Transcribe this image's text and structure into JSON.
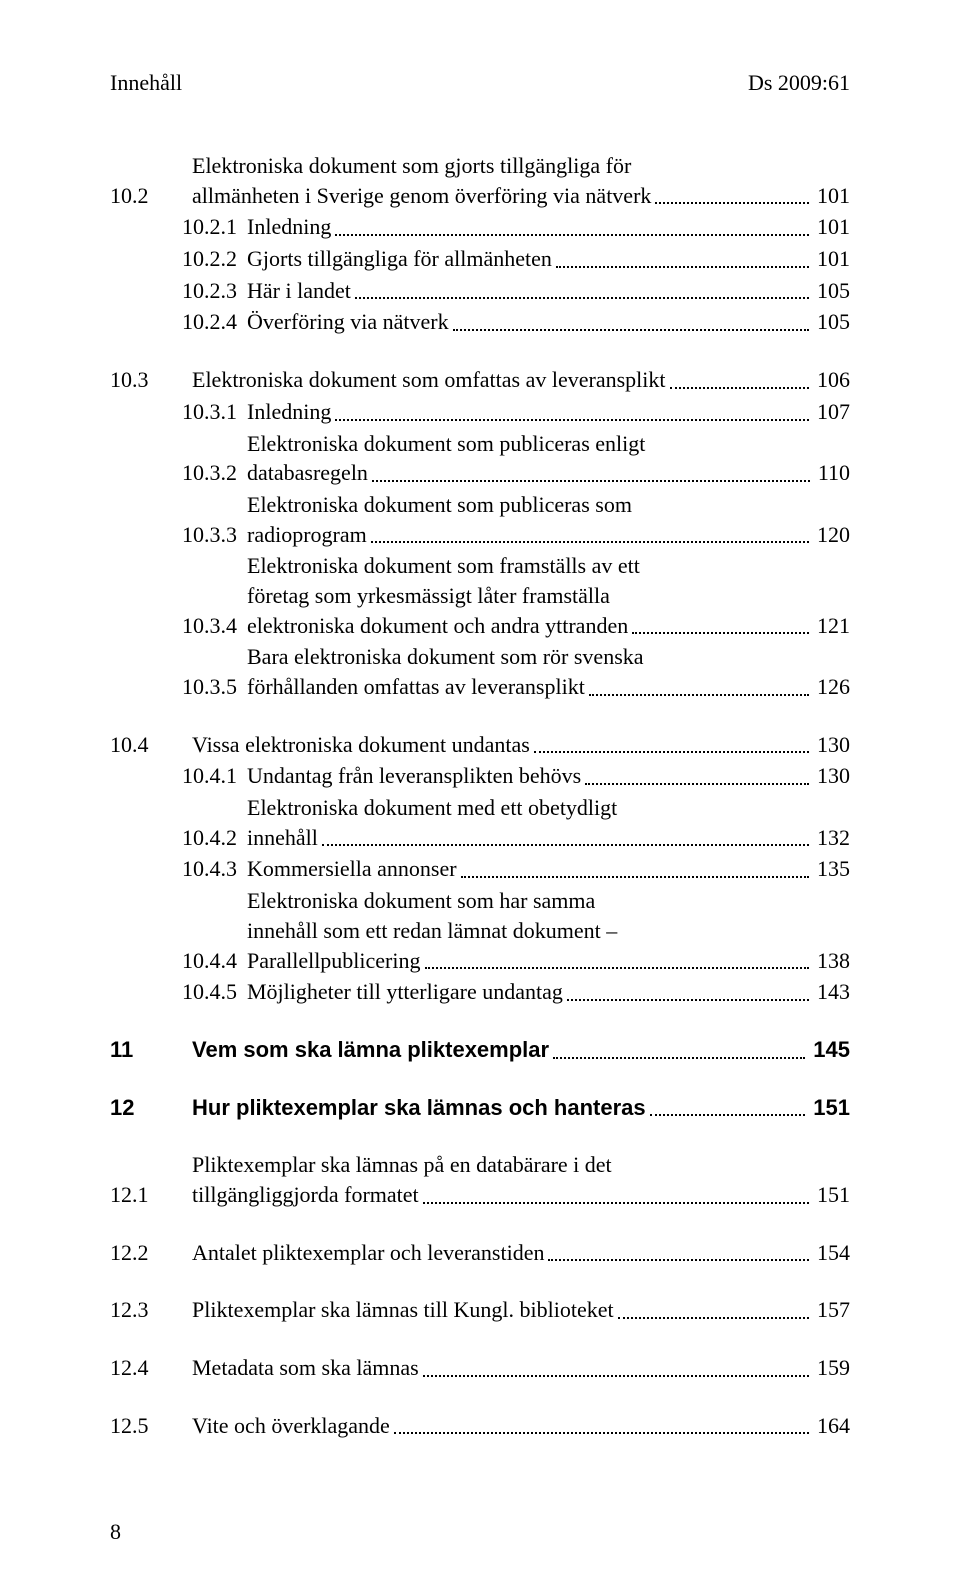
{
  "header": {
    "left": "Innehåll",
    "right": "Ds 2009:61"
  },
  "footer": {
    "page_number": "8"
  },
  "toc": [
    {
      "level": "sub1",
      "num": "10.2",
      "lines": [
        "Elektroniska dokument som gjorts tillgängliga för"
      ],
      "last": "allmänheten i Sverige genom överföring via nätverk",
      "page": "101"
    },
    {
      "level": "sub2",
      "num": "10.2.1",
      "lines": [],
      "last": "Inledning",
      "page": "101"
    },
    {
      "level": "sub2",
      "num": "10.2.2",
      "lines": [],
      "last": "Gjorts tillgängliga för allmänheten",
      "page": "101"
    },
    {
      "level": "sub2",
      "num": "10.2.3",
      "lines": [],
      "last": "Här i landet",
      "page": "105"
    },
    {
      "level": "sub2",
      "num": "10.2.4",
      "lines": [],
      "last": "Överföring via nätverk",
      "page": "105"
    },
    {
      "gap": true
    },
    {
      "level": "sub1",
      "num": "10.3",
      "lines": [],
      "last": "Elektroniska dokument som omfattas av leveransplikt",
      "page": "106"
    },
    {
      "level": "sub2",
      "num": "10.3.1",
      "lines": [],
      "last": "Inledning",
      "page": "107"
    },
    {
      "level": "sub2",
      "num": "10.3.2",
      "lines": [
        "Elektroniska dokument som publiceras enligt"
      ],
      "last": "databasregeln",
      "page": "110"
    },
    {
      "level": "sub2",
      "num": "10.3.3",
      "lines": [
        "Elektroniska dokument som publiceras som"
      ],
      "last": "radioprogram",
      "page": "120"
    },
    {
      "level": "sub2",
      "num": "10.3.4",
      "lines": [
        "Elektroniska dokument som framställs av ett",
        "företag som yrkesmässigt låter framställa"
      ],
      "last": "elektroniska dokument och andra yttranden",
      "page": "121"
    },
    {
      "level": "sub2",
      "num": "10.3.5",
      "lines": [
        "Bara elektroniska dokument som rör svenska"
      ],
      "last": "förhållanden omfattas av leveransplikt",
      "page": "126"
    },
    {
      "gap": true
    },
    {
      "level": "sub1",
      "num": "10.4",
      "lines": [],
      "last": "Vissa elektroniska dokument undantas",
      "page": "130"
    },
    {
      "level": "sub2",
      "num": "10.4.1",
      "lines": [],
      "last": "Undantag från leveransplikten behövs",
      "page": "130"
    },
    {
      "level": "sub2",
      "num": "10.4.2",
      "lines": [
        "Elektroniska dokument med ett obetydligt"
      ],
      "last": "innehåll",
      "page": "132"
    },
    {
      "level": "sub2",
      "num": "10.4.3",
      "lines": [],
      "last": "Kommersiella annonser",
      "page": "135"
    },
    {
      "level": "sub2",
      "num": "10.4.4",
      "lines": [
        "Elektroniska dokument som har samma",
        "innehåll som ett redan lämnat dokument –"
      ],
      "last": "Parallellpublicering",
      "page": "138"
    },
    {
      "level": "sub2",
      "num": "10.4.5",
      "lines": [],
      "last": "Möjligheter till ytterligare undantag",
      "page": "143"
    },
    {
      "gap": true
    },
    {
      "level": "chapter",
      "num": "11",
      "lines": [],
      "last": "Vem som ska lämna pliktexemplar",
      "page": "145"
    },
    {
      "gap": true
    },
    {
      "level": "chapter",
      "num": "12",
      "lines": [],
      "last": "Hur pliktexemplar ska lämnas och hanteras",
      "page": "151"
    },
    {
      "gap": true
    },
    {
      "level": "sub1",
      "num": "12.1",
      "lines": [
        "Pliktexemplar ska lämnas på en databärare i det"
      ],
      "last": "tillgängliggjorda formatet",
      "page": "151"
    },
    {
      "gap": true
    },
    {
      "level": "sub1",
      "num": "12.2",
      "lines": [],
      "last": "Antalet pliktexemplar och leveranstiden",
      "page": "154"
    },
    {
      "gap": true
    },
    {
      "level": "sub1",
      "num": "12.3",
      "lines": [],
      "last": "Pliktexemplar ska lämnas till Kungl. biblioteket",
      "page": "157"
    },
    {
      "gap": true
    },
    {
      "level": "sub1",
      "num": "12.4",
      "lines": [],
      "last": "Metadata som ska lämnas",
      "page": "159"
    },
    {
      "gap": true
    },
    {
      "level": "sub1",
      "num": "12.5",
      "lines": [],
      "last": "Vite och överklagande",
      "page": "164"
    }
  ]
}
